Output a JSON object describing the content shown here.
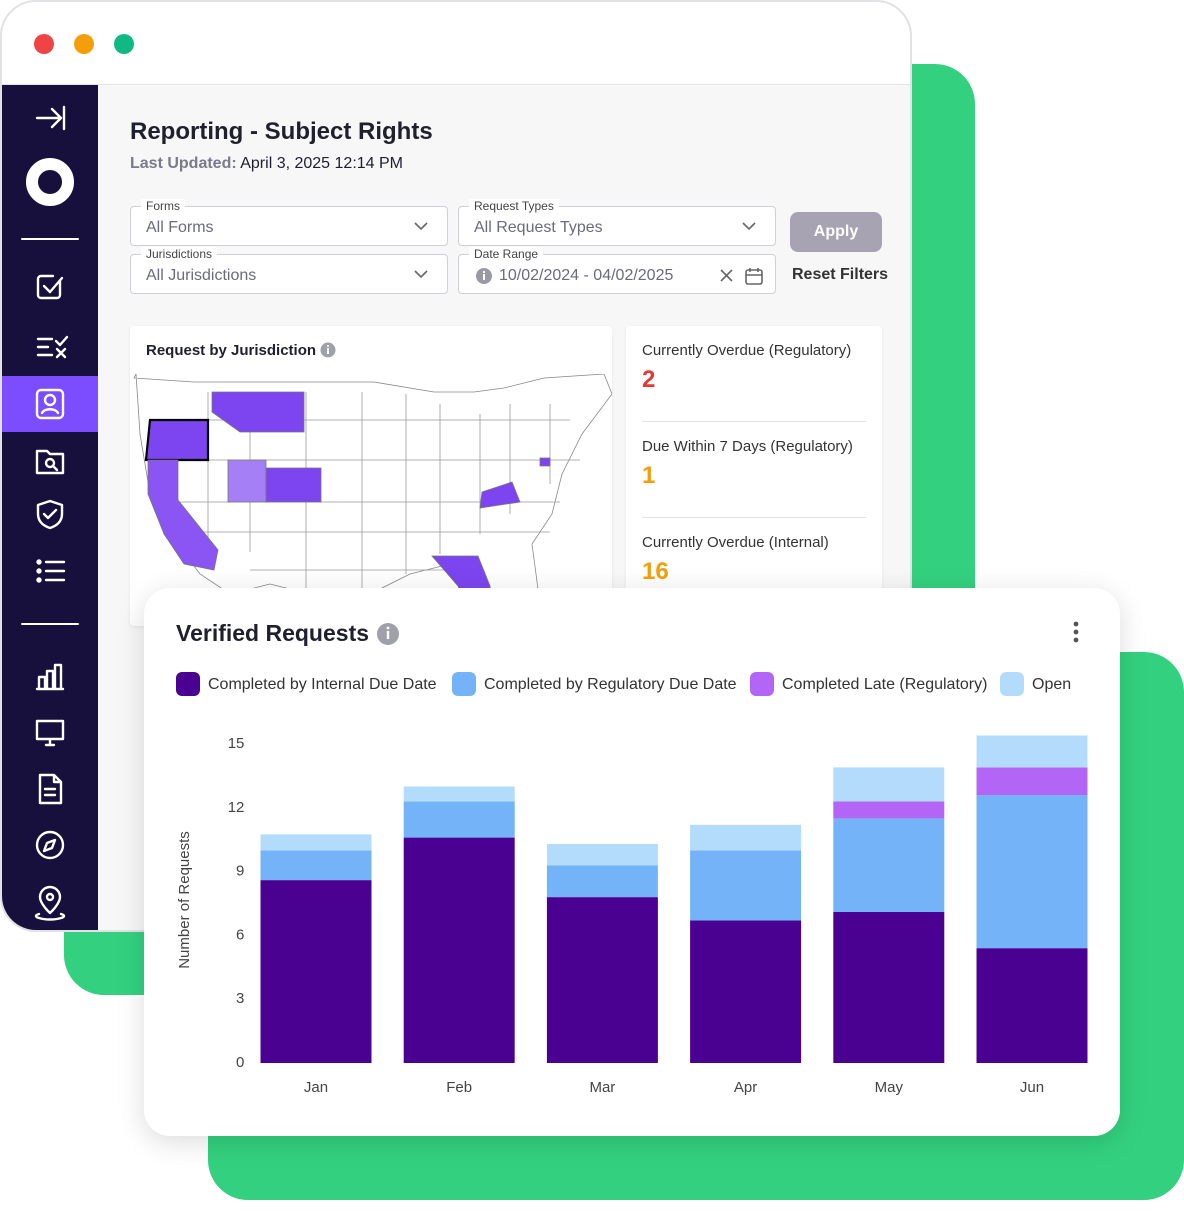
{
  "header": {
    "title": "Reporting - Subject Rights",
    "updated_label": "Last Updated:",
    "updated_value": "April 3, 2025 12:14 PM"
  },
  "filters": [
    {
      "label": "Forms",
      "value": "All Forms"
    },
    {
      "label": "Request Types",
      "value": "All Request Types"
    },
    {
      "label": "Jurisdictions",
      "value": "All Jurisdictions"
    },
    {
      "label": "Date Range",
      "value": "10/02/2024 - 04/02/2025"
    }
  ],
  "buttons": {
    "apply": "Apply",
    "reset": "Reset Filters"
  },
  "map": {
    "title": "Request by Jurisdiction"
  },
  "stats": [
    {
      "label": "Currently Overdue (Regulatory)",
      "value": 2
    },
    {
      "label": "Due Within 7 Days (Regulatory)",
      "value": 1
    },
    {
      "label": "Currently Overdue (Internal)",
      "value": 16
    }
  ],
  "chart_data": {
    "type": "stacked_bar",
    "title": "Verified Requests",
    "y_label": "Number of Requests",
    "categories": [
      "Jan",
      "Feb",
      "Mar",
      "Apr",
      "May",
      "Jun"
    ],
    "series": [
      {
        "name": "Completed by Internal Due Date",
        "color": "#4a0091",
        "values": [
          8.6,
          10.6,
          7.8,
          6.7,
          7.1,
          5.4
        ]
      },
      {
        "name": "Completed by Regulatory Due Date",
        "color": "#74b3f7",
        "values": [
          1.4,
          1.7,
          1.5,
          3.3,
          4.4,
          7.2
        ]
      },
      {
        "name": "Completed Late (Regulatory)",
        "color": "#b366f5",
        "values": [
          0,
          0,
          0,
          0,
          0.8,
          1.3
        ]
      },
      {
        "name": "Open",
        "color": "#b3dcfc",
        "values": [
          0.75,
          0.7,
          1.0,
          1.2,
          1.6,
          1.5
        ]
      }
    ],
    "ylim": [
      0,
      15.4
    ],
    "yticks": [
      0,
      3,
      6,
      9,
      12,
      15
    ],
    "grid": false
  }
}
